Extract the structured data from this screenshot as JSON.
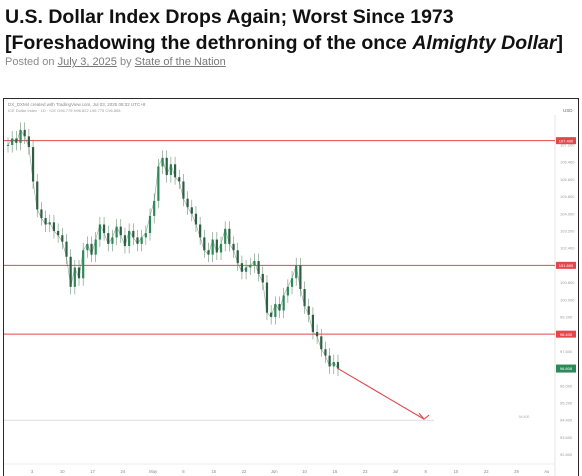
{
  "article": {
    "title_line1": "U.S. Dollar Index Drops Again; Worst Since 1973",
    "title_line2_prefix": "[Foreshadowing the dethroning of the once ",
    "title_line2_em": "Almighty Dollar",
    "title_line2_suffix": "]",
    "posted_on_label": "Posted on ",
    "date": "July 3, 2025",
    "by_label": " by ",
    "author": "State of the Nation"
  },
  "chart_data": {
    "type": "line",
    "title": "",
    "xlabel": "",
    "ylabel": "",
    "header_text": "DX_DXM4 created with TradingView.com, Jul 03, 2025 08:32 UTC+8",
    "ohlc_text": "ICE Dollar Index · 1D · ICE  O96.775 H96.822 L96.775 C96.808",
    "currency": "USD",
    "ylim": [
      92.5,
      108.5
    ],
    "yticks": [
      107.4,
      107.2,
      106.4,
      105.6,
      104.8,
      104.0,
      103.2,
      102.4,
      101.6,
      100.8,
      100.0,
      99.2,
      98.4,
      97.6,
      96.8,
      96.0,
      95.2,
      94.4,
      93.6,
      92.8
    ],
    "ytick_labels": [
      "107.400",
      "107.200",
      "106.400",
      "105.600",
      "104.800",
      "104.000",
      "103.200",
      "102.400",
      "101.600",
      "100.800",
      "100.000",
      "99.200",
      "98.400",
      "97.600",
      "96.800",
      "96.000",
      "95.200",
      "94.400",
      "93.600",
      "92.800"
    ],
    "xtick_labels": [
      "3",
      "10",
      "17",
      "24",
      "May",
      "8",
      "15",
      "22",
      "Jun",
      "10",
      "16",
      "23",
      "Jul",
      "8",
      "15",
      "22",
      "29",
      "Au"
    ],
    "x": [
      0,
      1,
      2,
      3,
      4,
      5,
      6,
      7,
      8,
      9,
      10,
      11,
      12,
      13,
      14,
      15,
      16,
      17,
      18,
      19,
      20,
      21,
      22,
      23,
      24,
      25,
      26,
      27,
      28,
      29,
      30,
      31,
      32,
      33,
      34,
      35,
      36,
      37,
      38,
      39,
      40,
      41,
      42,
      43,
      44,
      45,
      46,
      47,
      48,
      49,
      50,
      51,
      52,
      53,
      54,
      55,
      56,
      57,
      58,
      59,
      60,
      61,
      62,
      63,
      64,
      65,
      66,
      67,
      68,
      69,
      70,
      71,
      72,
      73,
      74,
      75,
      76,
      77,
      78,
      79
    ],
    "series": [
      {
        "values": [
          107.2,
          107.5,
          107.3,
          107.9,
          107.6,
          107.1,
          105.5,
          104.2,
          103.8,
          103.5,
          103.6,
          103.2,
          103.0,
          102.7,
          102.0,
          100.6,
          101.5,
          101.0,
          102.3,
          102.6,
          102.1,
          102.8,
          103.5,
          103.1,
          102.6,
          102.9,
          103.4,
          103.0,
          102.5,
          103.2,
          102.9,
          102.6,
          102.9,
          103.1,
          103.9,
          104.6,
          106.2,
          106.6,
          105.8,
          106.3,
          105.7,
          105.5,
          104.7,
          104.3,
          104.0,
          103.5,
          102.9,
          102.3,
          102.1,
          102.8,
          102.2,
          102.6,
          103.3,
          102.6,
          102.3,
          101.7,
          101.3,
          101.5,
          101.6,
          101.8,
          101.2,
          100.8,
          99.4,
          99.2,
          99.8,
          99.5,
          100.2,
          100.6,
          101.0,
          101.6,
          100.5,
          99.7,
          99.3,
          98.5,
          98.3,
          97.7,
          97.4,
          96.9,
          97.1,
          96.8
        ],
        "color": "#2b8a57"
      }
    ],
    "hlines": [
      {
        "value": 107.4,
        "label": "107.400",
        "color": "#e2474c"
      },
      {
        "value": 101.6,
        "label": "101.600",
        "color": "#e2474c"
      },
      {
        "value": 98.4,
        "label": "98.400",
        "color": "#e2474c"
      }
    ],
    "target": {
      "value": 94.4,
      "label": "94.400",
      "marker_text": "94.400",
      "color": "#e2474c"
    },
    "last_price": {
      "value": 96.8,
      "label": "96.808",
      "color": "#2b8a57"
    },
    "grid": false
  }
}
